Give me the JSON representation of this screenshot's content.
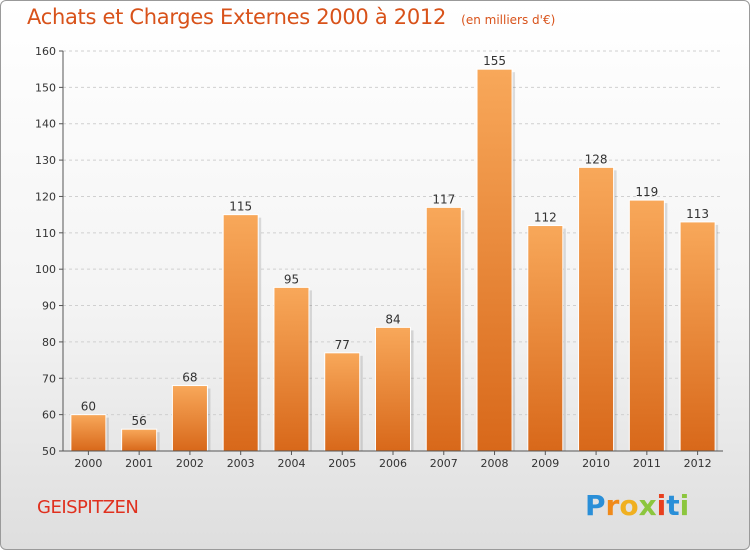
{
  "chart_data": {
    "type": "bar",
    "title": "Achats et Charges Externes 2000 à 2012",
    "subtitle": "(en milliers d'€)",
    "xlabel": "",
    "ylabel": "",
    "categories": [
      "2000",
      "2001",
      "2002",
      "2003",
      "2004",
      "2005",
      "2006",
      "2007",
      "2008",
      "2009",
      "2010",
      "2011",
      "2012"
    ],
    "values": [
      60,
      56,
      68,
      115,
      95,
      77,
      84,
      117,
      155,
      112,
      128,
      119,
      113
    ],
    "ylim": [
      50,
      160
    ],
    "yticks": [
      50,
      60,
      70,
      80,
      90,
      100,
      110,
      120,
      130,
      140,
      150,
      160
    ],
    "grid": true,
    "legend": "none",
    "bar_color": "#f0862a",
    "bar_color_light": "#f8a85a",
    "bar_color_dark": "#d8681a"
  },
  "footer": {
    "commune": "GEISPITZEN",
    "logo": {
      "letters": [
        "P",
        "r",
        "o",
        "x",
        "i",
        "t",
        "i"
      ],
      "colors": [
        "#2a8fd8",
        "#f08a1a",
        "#f0b020",
        "#8cc63e",
        "#e8401e",
        "#2a8fd8",
        "#8cc63e"
      ]
    }
  }
}
